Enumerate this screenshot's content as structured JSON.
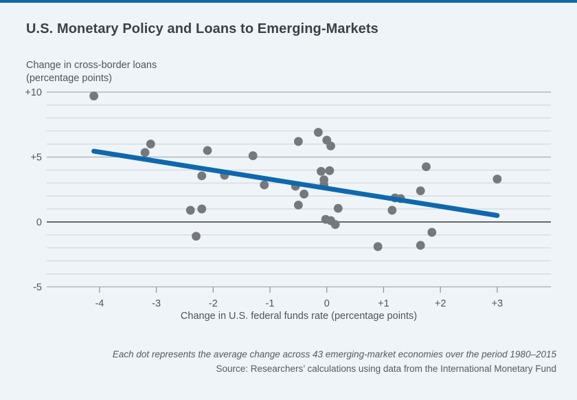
{
  "page": {
    "title": "U.S. Monetary Policy and Loans to Emerging-Markets",
    "footnote_line1": "Each dot represents the average change across 43 emerging-market economies over the period 1980–2015",
    "footnote_line2": "Source: Researchers’ calculations using data from the International Monetary Fund"
  },
  "colors": {
    "background": "#eff4f8",
    "top_bar": "#0f68ad",
    "title_text": "#3a4149",
    "label_text": "#4e545a",
    "footnote_text": "#555a60",
    "grid_minor": "#cbd1d7",
    "grid_major": "#a7adb3",
    "zero_line": "#43484e",
    "tick": "#898f95",
    "label": "#4e545a"
  },
  "chart_data": {
    "type": "scatter",
    "title": "U.S. Monetary Policy and Loans to Emerging-Markets",
    "xlabel": "Change in U.S. federal funds rate (percentage points)",
    "ylabel_line1": "Change in cross-border loans",
    "ylabel_line2": "(percentage points)",
    "xlim": [
      -4.93,
      3.945
    ],
    "ylim": [
      -5,
      10
    ],
    "grid": "horizontal, every 1 unit; darker rule every 5 units; dark zero line",
    "legend": "none",
    "x_ticks": [
      {
        "value": -4,
        "label": "-4"
      },
      {
        "value": -3,
        "label": "-3"
      },
      {
        "value": -2,
        "label": "-2"
      },
      {
        "value": -1,
        "label": "-1"
      },
      {
        "value": 0,
        "label": "0"
      },
      {
        "value": 1,
        "label": "+1"
      },
      {
        "value": 2,
        "label": "+2"
      },
      {
        "value": 3,
        "label": "+3"
      }
    ],
    "y_ticks": [
      {
        "value": 10,
        "label": "+10"
      },
      {
        "value": 5,
        "label": "+5"
      },
      {
        "value": 0,
        "label": "0"
      },
      {
        "value": -5,
        "label": "-5"
      }
    ],
    "points": [
      {
        "x": -4.1,
        "y": 9.7
      },
      {
        "x": -3.1,
        "y": 6.0
      },
      {
        "x": -3.2,
        "y": 5.35
      },
      {
        "x": -2.1,
        "y": 5.5
      },
      {
        "x": -2.2,
        "y": 3.55
      },
      {
        "x": -1.8,
        "y": 3.6
      },
      {
        "x": -1.3,
        "y": 5.1
      },
      {
        "x": -1.1,
        "y": 2.85
      },
      {
        "x": -2.4,
        "y": 0.9
      },
      {
        "x": -2.2,
        "y": 1.0
      },
      {
        "x": -2.3,
        "y": -1.1
      },
      {
        "x": -0.5,
        "y": 6.2
      },
      {
        "x": -0.15,
        "y": 6.9
      },
      {
        "x": 0.0,
        "y": 6.3
      },
      {
        "x": 0.07,
        "y": 5.85
      },
      {
        "x": -0.1,
        "y": 3.9
      },
      {
        "x": 0.05,
        "y": 3.95
      },
      {
        "x": -0.05,
        "y": 3.25
      },
      {
        "x": -0.05,
        "y": 2.85
      },
      {
        "x": -0.55,
        "y": 2.75
      },
      {
        "x": -0.4,
        "y": 2.15
      },
      {
        "x": -0.5,
        "y": 1.3
      },
      {
        "x": 0.2,
        "y": 1.05
      },
      {
        "x": -0.02,
        "y": 0.2
      },
      {
        "x": 0.07,
        "y": 0.1
      },
      {
        "x": 0.15,
        "y": -0.2
      },
      {
        "x": 1.75,
        "y": 4.25
      },
      {
        "x": 3.0,
        "y": 3.3
      },
      {
        "x": 1.65,
        "y": 2.4
      },
      {
        "x": 1.2,
        "y": 1.85
      },
      {
        "x": 1.3,
        "y": 1.8
      },
      {
        "x": 1.15,
        "y": 0.9
      },
      {
        "x": 1.85,
        "y": -0.8
      },
      {
        "x": 0.9,
        "y": -1.9
      },
      {
        "x": 1.65,
        "y": -1.8
      }
    ],
    "trend_line": {
      "x1": -4.1,
      "y1": 5.45,
      "x2": 3.0,
      "y2": 0.5
    },
    "point_color": "#75787c",
    "trend_color": "#0f68ad"
  }
}
